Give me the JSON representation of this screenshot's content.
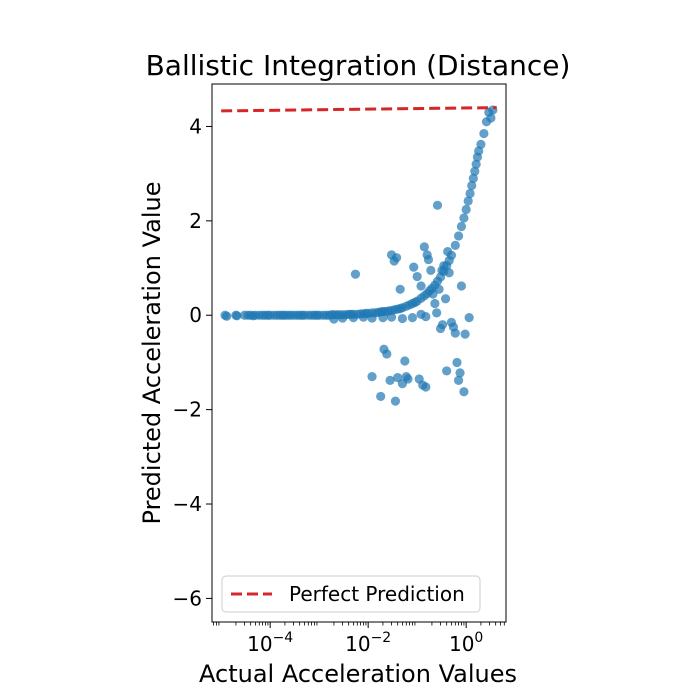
{
  "chart_data": {
    "type": "scatter",
    "title": "Ballistic Integration (Distance)",
    "xlabel": "Actual Acceleration Values",
    "ylabel": "Predicted Acceleration Value",
    "x_scale": "log",
    "xlim": [
      6.5e-06,
      6.5
    ],
    "ylim": [
      -6.5,
      4.9
    ],
    "x_ticks": [
      {
        "value": 0.0001,
        "base": "10",
        "exp": "−4"
      },
      {
        "value": 0.01,
        "base": "10",
        "exp": "−2"
      },
      {
        "value": 1,
        "base": "10",
        "exp": "0"
      }
    ],
    "y_ticks": [
      {
        "value": 4,
        "label": "4"
      },
      {
        "value": 2,
        "label": "2"
      },
      {
        "value": 0,
        "label": "0"
      },
      {
        "value": -2,
        "label": "−2"
      },
      {
        "value": -4,
        "label": "−4"
      },
      {
        "value": -6,
        "label": "−6"
      }
    ],
    "grid": false,
    "legend": {
      "position": "lower-left",
      "entries": [
        "Perfect Prediction"
      ]
    },
    "colors": {
      "points": "#1f77b4",
      "perfect_line": "#d62728"
    },
    "perfect_prediction_line": [
      [
        1e-05,
        4.33
      ],
      [
        4.2,
        4.4
      ]
    ],
    "series": [
      {
        "color": "#1f77b4",
        "points": [
          [
            1.2e-05,
            0.0
          ],
          [
            1.3e-05,
            -0.02
          ],
          [
            2e-05,
            0.0
          ],
          [
            2.1e-05,
            -0.01
          ],
          [
            3e-05,
            0.0
          ],
          [
            3.5e-05,
            0.0
          ],
          [
            4e-05,
            0.0
          ],
          [
            4.5e-05,
            -0.01
          ],
          [
            5e-05,
            0.0
          ],
          [
            6e-05,
            0.0
          ],
          [
            7e-05,
            0.0
          ],
          [
            8e-05,
            0.0
          ],
          [
            9e-05,
            0.0
          ],
          [
            0.0001,
            0.0
          ],
          [
            0.00012,
            0.0
          ],
          [
            0.00014,
            0.0
          ],
          [
            0.00016,
            0.0
          ],
          [
            0.00018,
            0.0
          ],
          [
            0.0002,
            0.0
          ],
          [
            0.00023,
            0.0
          ],
          [
            0.00026,
            0.0
          ],
          [
            0.0003,
            0.0
          ],
          [
            0.00035,
            0.0
          ],
          [
            0.0004,
            0.0
          ],
          [
            0.00045,
            0.0
          ],
          [
            0.0005,
            0.0
          ],
          [
            0.0006,
            0.0
          ],
          [
            0.0007,
            0.0
          ],
          [
            0.0008,
            0.0
          ],
          [
            0.0009,
            0.0
          ],
          [
            0.001,
            0.0
          ],
          [
            0.0012,
            0.0
          ],
          [
            0.0014,
            0.0
          ],
          [
            0.0016,
            0.0
          ],
          [
            0.0018,
            0.01
          ],
          [
            0.002,
            0.01
          ],
          [
            0.0023,
            0.01
          ],
          [
            0.0026,
            0.01
          ],
          [
            0.003,
            0.01
          ],
          [
            0.0035,
            0.01
          ],
          [
            0.004,
            0.02
          ],
          [
            0.0045,
            0.02
          ],
          [
            0.005,
            0.02
          ],
          [
            0.006,
            0.02
          ],
          [
            0.007,
            0.03
          ],
          [
            0.008,
            0.03
          ],
          [
            0.009,
            0.04
          ],
          [
            0.01,
            0.04
          ],
          [
            0.012,
            0.05
          ],
          [
            0.014,
            0.05
          ],
          [
            0.016,
            0.06
          ],
          [
            0.018,
            0.07
          ],
          [
            0.02,
            0.08
          ],
          [
            0.023,
            0.08
          ],
          [
            0.026,
            0.09
          ],
          [
            0.03,
            0.1
          ],
          [
            0.035,
            0.12
          ],
          [
            0.04,
            0.13
          ],
          [
            0.045,
            0.14
          ],
          [
            0.05,
            0.16
          ],
          [
            0.06,
            0.19
          ],
          [
            0.07,
            0.22
          ],
          [
            0.08,
            0.25
          ],
          [
            0.09,
            0.27
          ],
          [
            0.1,
            0.3
          ],
          [
            0.12,
            0.36
          ],
          [
            0.14,
            0.41
          ],
          [
            0.16,
            0.46
          ],
          [
            0.18,
            0.52
          ],
          [
            0.2,
            0.57
          ],
          [
            0.23,
            0.64
          ],
          [
            0.26,
            0.72
          ],
          [
            0.3,
            0.81
          ],
          [
            0.35,
            0.93
          ],
          [
            0.4,
            1.05
          ],
          [
            0.45,
            1.16
          ],
          [
            0.5,
            1.27
          ],
          [
            0.6,
            1.48
          ],
          [
            0.7,
            1.68
          ],
          [
            0.8,
            1.88
          ],
          [
            0.9,
            2.06
          ],
          [
            1.0,
            2.24
          ],
          [
            1.1,
            2.42
          ],
          [
            1.2,
            2.58
          ],
          [
            1.3,
            2.75
          ],
          [
            1.4,
            2.9
          ],
          [
            1.5,
            3.05
          ],
          [
            1.6,
            3.2
          ],
          [
            1.7,
            3.35
          ],
          [
            1.8,
            3.48
          ],
          [
            2.0,
            3.62
          ],
          [
            2.3,
            3.85
          ],
          [
            2.6,
            4.1
          ],
          [
            2.9,
            4.3
          ],
          [
            3.2,
            4.18
          ],
          [
            3.5,
            4.35
          ],
          [
            0.002,
            -0.08
          ],
          [
            0.003,
            -0.06
          ],
          [
            0.005,
            -0.05
          ],
          [
            0.008,
            -0.04
          ],
          [
            0.012,
            -0.06
          ],
          [
            0.02,
            -0.05
          ],
          [
            0.03,
            -0.04
          ],
          [
            0.05,
            -0.07
          ],
          [
            0.08,
            -0.05
          ],
          [
            0.12,
            0.02
          ],
          [
            0.15,
            -0.03
          ],
          [
            0.25,
            0.05
          ],
          [
            0.0055,
            0.87
          ],
          [
            0.012,
            -1.3
          ],
          [
            0.021,
            -0.72
          ],
          [
            0.024,
            -0.82
          ],
          [
            0.03,
            1.28
          ],
          [
            0.034,
            1.15
          ],
          [
            0.038,
            1.22
          ],
          [
            0.045,
            0.55
          ],
          [
            0.04,
            -1.32
          ],
          [
            0.05,
            -1.45
          ],
          [
            0.056,
            -0.97
          ],
          [
            0.06,
            -1.3
          ],
          [
            0.085,
            1.02
          ],
          [
            0.1,
            0.82
          ],
          [
            0.11,
            -1.35
          ],
          [
            0.12,
            0.62
          ],
          [
            0.13,
            -1.48
          ],
          [
            0.14,
            1.45
          ],
          [
            0.16,
            1.28
          ],
          [
            0.17,
            1.18
          ],
          [
            0.19,
            0.95
          ],
          [
            0.21,
            0.45
          ],
          [
            0.23,
            0.25
          ],
          [
            0.26,
            2.33
          ],
          [
            0.28,
            0.55
          ],
          [
            0.3,
            -0.28
          ],
          [
            0.32,
            0.95
          ],
          [
            0.35,
            1.05
          ],
          [
            0.38,
            0.35
          ],
          [
            0.4,
            -1.18
          ],
          [
            0.42,
            1.35
          ],
          [
            0.45,
            0.9
          ],
          [
            0.5,
            -0.15
          ],
          [
            0.55,
            -0.25
          ],
          [
            0.6,
            -0.38
          ],
          [
            0.65,
            -1.0
          ],
          [
            0.7,
            -1.38
          ],
          [
            0.75,
            -1.22
          ],
          [
            0.8,
            0.62
          ],
          [
            0.9,
            -1.62
          ],
          [
            0.95,
            -0.4
          ],
          [
            1.15,
            -0.05
          ],
          [
            0.036,
            -1.82
          ],
          [
            0.028,
            -1.38
          ],
          [
            0.018,
            -1.72
          ],
          [
            0.065,
            -1.35
          ],
          [
            0.15,
            -1.52
          ],
          [
            0.33,
            -0.2
          ]
        ]
      }
    ]
  }
}
